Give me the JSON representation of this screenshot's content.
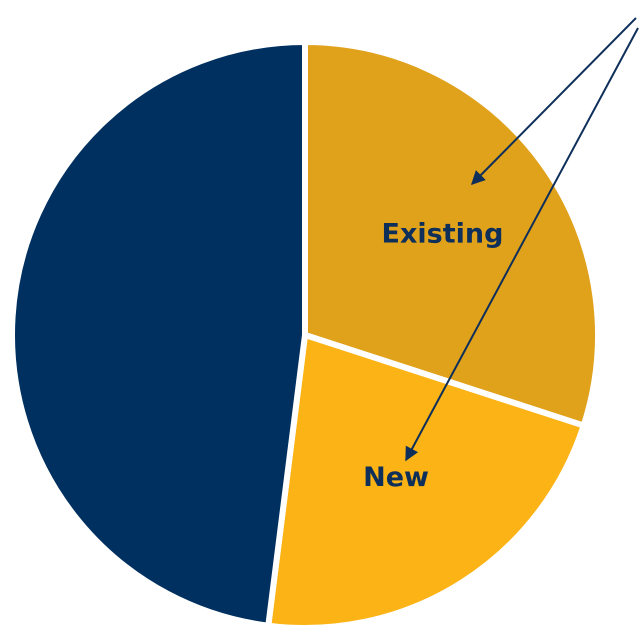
{
  "chart_data": {
    "type": "pie",
    "categories": [
      "Existing",
      "New",
      null
    ],
    "values": [
      30,
      22,
      48
    ],
    "colors": [
      "#e0a11b",
      "#fbb316",
      "#003060"
    ]
  }
}
